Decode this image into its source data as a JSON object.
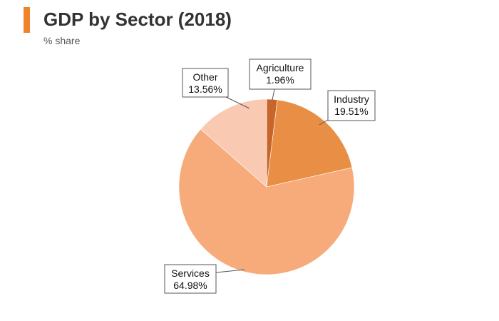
{
  "header": {
    "title": "GDP by Sector (2018)",
    "subtitle": "% share",
    "accent_color": "#f0832a"
  },
  "chart_data": {
    "type": "pie",
    "title": "GDP by Sector (2018)",
    "subtitle": "% share",
    "slices": [
      {
        "label": "Agriculture",
        "value": 1.96,
        "value_label": "1.96%",
        "color": "#c8652a"
      },
      {
        "label": "Industry",
        "value": 19.51,
        "value_label": "19.51%",
        "color": "#e98f45"
      },
      {
        "label": "Services",
        "value": 64.98,
        "value_label": "64.98%",
        "color": "#f7ab7b"
      },
      {
        "label": "Other",
        "value": 13.56,
        "value_label": "13.56%",
        "color": "#f9c9b2"
      }
    ],
    "start": "12 o'clock",
    "direction": "clockwise",
    "legend": "none",
    "data_labels": "callout boxes"
  }
}
